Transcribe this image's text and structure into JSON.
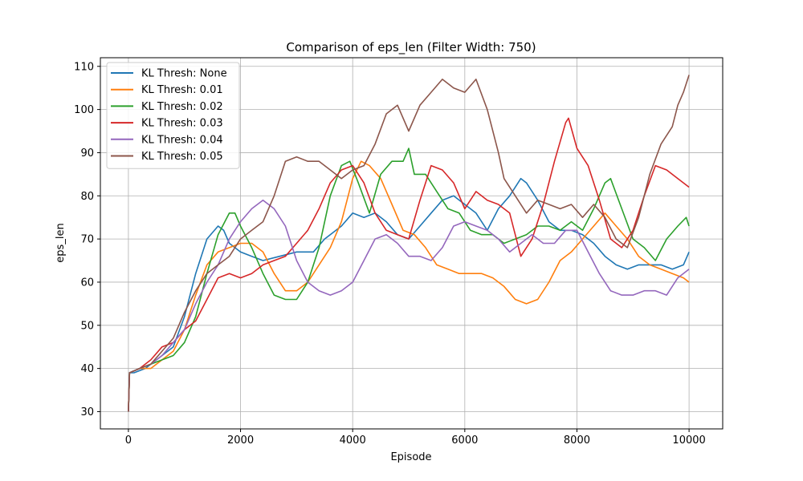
{
  "chart_data": {
    "type": "line",
    "title": "Comparison of eps_len (Filter Width: 750)",
    "xlabel": "Episode",
    "ylabel": "eps_len",
    "xlim": [
      -500,
      10600
    ],
    "ylim": [
      26,
      112
    ],
    "xticks": [
      0,
      2000,
      4000,
      6000,
      8000,
      10000
    ],
    "yticks": [
      30,
      40,
      50,
      60,
      70,
      80,
      90,
      100,
      110
    ],
    "grid": true,
    "legend_position": "upper-left",
    "series": [
      {
        "name": "KL Thresh: None",
        "color": "#1f77b4",
        "points": [
          [
            0,
            30
          ],
          [
            20,
            39
          ],
          [
            100,
            39
          ],
          [
            300,
            40
          ],
          [
            600,
            43
          ],
          [
            800,
            45
          ],
          [
            1000,
            52
          ],
          [
            1200,
            62
          ],
          [
            1400,
            70
          ],
          [
            1600,
            73
          ],
          [
            1700,
            72
          ],
          [
            1800,
            69
          ],
          [
            2000,
            67
          ],
          [
            2200,
            66
          ],
          [
            2400,
            65
          ],
          [
            2700,
            66
          ],
          [
            3000,
            67
          ],
          [
            3300,
            67
          ],
          [
            3500,
            70
          ],
          [
            3800,
            73
          ],
          [
            4000,
            76
          ],
          [
            4200,
            75
          ],
          [
            4400,
            76
          ],
          [
            4600,
            74
          ],
          [
            4800,
            71
          ],
          [
            5000,
            70
          ],
          [
            5200,
            73
          ],
          [
            5400,
            76
          ],
          [
            5600,
            79
          ],
          [
            5800,
            80
          ],
          [
            6000,
            78
          ],
          [
            6200,
            76
          ],
          [
            6400,
            72
          ],
          [
            6600,
            77
          ],
          [
            6800,
            80
          ],
          [
            7000,
            84
          ],
          [
            7100,
            83
          ],
          [
            7300,
            79
          ],
          [
            7500,
            74
          ],
          [
            7700,
            72
          ],
          [
            7900,
            72
          ],
          [
            8100,
            71
          ],
          [
            8300,
            69
          ],
          [
            8500,
            66
          ],
          [
            8700,
            64
          ],
          [
            8900,
            63
          ],
          [
            9100,
            64
          ],
          [
            9300,
            64
          ],
          [
            9500,
            64
          ],
          [
            9700,
            63
          ],
          [
            9900,
            64
          ],
          [
            10000,
            67
          ]
        ]
      },
      {
        "name": "KL Thresh: 0.01",
        "color": "#ff7f0e",
        "points": [
          [
            0,
            30
          ],
          [
            20,
            39
          ],
          [
            200,
            40
          ],
          [
            400,
            40
          ],
          [
            600,
            42
          ],
          [
            800,
            44
          ],
          [
            1000,
            49
          ],
          [
            1200,
            57
          ],
          [
            1400,
            64
          ],
          [
            1600,
            67
          ],
          [
            1800,
            68
          ],
          [
            2000,
            69
          ],
          [
            2200,
            69
          ],
          [
            2400,
            67
          ],
          [
            2600,
            62
          ],
          [
            2800,
            58
          ],
          [
            3000,
            58
          ],
          [
            3200,
            60
          ],
          [
            3400,
            64
          ],
          [
            3600,
            68
          ],
          [
            3800,
            74
          ],
          [
            4000,
            84
          ],
          [
            4150,
            88
          ],
          [
            4300,
            87
          ],
          [
            4500,
            84
          ],
          [
            4700,
            78
          ],
          [
            4900,
            72
          ],
          [
            5100,
            71
          ],
          [
            5300,
            68
          ],
          [
            5500,
            64
          ],
          [
            5700,
            63
          ],
          [
            5900,
            62
          ],
          [
            6100,
            62
          ],
          [
            6300,
            62
          ],
          [
            6500,
            61
          ],
          [
            6700,
            59
          ],
          [
            6900,
            56
          ],
          [
            7100,
            55
          ],
          [
            7300,
            56
          ],
          [
            7500,
            60
          ],
          [
            7700,
            65
          ],
          [
            7900,
            67
          ],
          [
            8100,
            70
          ],
          [
            8300,
            73
          ],
          [
            8500,
            76
          ],
          [
            8700,
            73
          ],
          [
            8900,
            70
          ],
          [
            9100,
            66
          ],
          [
            9300,
            64
          ],
          [
            9500,
            63
          ],
          [
            9700,
            62
          ],
          [
            9900,
            61
          ],
          [
            10000,
            60
          ]
        ]
      },
      {
        "name": "KL Thresh: 0.02",
        "color": "#2ca02c",
        "points": [
          [
            0,
            30
          ],
          [
            20,
            39
          ],
          [
            200,
            40
          ],
          [
            400,
            41
          ],
          [
            600,
            42
          ],
          [
            800,
            43
          ],
          [
            1000,
            46
          ],
          [
            1200,
            52
          ],
          [
            1400,
            62
          ],
          [
            1600,
            71
          ],
          [
            1800,
            76
          ],
          [
            1900,
            76
          ],
          [
            2000,
            73
          ],
          [
            2200,
            68
          ],
          [
            2400,
            62
          ],
          [
            2600,
            57
          ],
          [
            2800,
            56
          ],
          [
            3000,
            56
          ],
          [
            3200,
            60
          ],
          [
            3400,
            68
          ],
          [
            3600,
            80
          ],
          [
            3800,
            87
          ],
          [
            3950,
            88
          ],
          [
            4100,
            83
          ],
          [
            4300,
            76
          ],
          [
            4500,
            85
          ],
          [
            4700,
            88
          ],
          [
            4900,
            88
          ],
          [
            5000,
            91
          ],
          [
            5100,
            85
          ],
          [
            5300,
            85
          ],
          [
            5500,
            81
          ],
          [
            5700,
            77
          ],
          [
            5900,
            76
          ],
          [
            6100,
            72
          ],
          [
            6300,
            71
          ],
          [
            6500,
            71
          ],
          [
            6700,
            69
          ],
          [
            6900,
            70
          ],
          [
            7100,
            71
          ],
          [
            7300,
            73
          ],
          [
            7500,
            73
          ],
          [
            7700,
            72
          ],
          [
            7900,
            74
          ],
          [
            8100,
            72
          ],
          [
            8300,
            77
          ],
          [
            8500,
            83
          ],
          [
            8600,
            84
          ],
          [
            8800,
            77
          ],
          [
            9000,
            70
          ],
          [
            9200,
            68
          ],
          [
            9400,
            65
          ],
          [
            9600,
            70
          ],
          [
            9800,
            73
          ],
          [
            9950,
            75
          ],
          [
            10000,
            73
          ]
        ]
      },
      {
        "name": "KL Thresh: 0.03",
        "color": "#d62728",
        "points": [
          [
            0,
            30
          ],
          [
            20,
            39
          ],
          [
            200,
            40
          ],
          [
            400,
            42
          ],
          [
            600,
            45
          ],
          [
            800,
            46
          ],
          [
            1000,
            49
          ],
          [
            1200,
            51
          ],
          [
            1400,
            56
          ],
          [
            1600,
            61
          ],
          [
            1800,
            62
          ],
          [
            2000,
            61
          ],
          [
            2200,
            62
          ],
          [
            2400,
            64
          ],
          [
            2600,
            65
          ],
          [
            2800,
            66
          ],
          [
            3000,
            69
          ],
          [
            3200,
            72
          ],
          [
            3400,
            77
          ],
          [
            3600,
            83
          ],
          [
            3800,
            86
          ],
          [
            4000,
            87
          ],
          [
            4200,
            83
          ],
          [
            4400,
            76
          ],
          [
            4600,
            72
          ],
          [
            4800,
            71
          ],
          [
            5000,
            70
          ],
          [
            5200,
            79
          ],
          [
            5400,
            87
          ],
          [
            5600,
            86
          ],
          [
            5800,
            83
          ],
          [
            6000,
            77
          ],
          [
            6200,
            81
          ],
          [
            6400,
            79
          ],
          [
            6600,
            78
          ],
          [
            6800,
            76
          ],
          [
            7000,
            66
          ],
          [
            7200,
            70
          ],
          [
            7400,
            78
          ],
          [
            7600,
            88
          ],
          [
            7800,
            97
          ],
          [
            7850,
            98
          ],
          [
            8000,
            91
          ],
          [
            8200,
            87
          ],
          [
            8400,
            79
          ],
          [
            8600,
            70
          ],
          [
            8800,
            68
          ],
          [
            9000,
            72
          ],
          [
            9200,
            80
          ],
          [
            9400,
            87
          ],
          [
            9600,
            86
          ],
          [
            9800,
            84
          ],
          [
            10000,
            82
          ]
        ]
      },
      {
        "name": "KL Thresh: 0.04",
        "color": "#9467bd",
        "points": [
          [
            0,
            30
          ],
          [
            20,
            39
          ],
          [
            200,
            40
          ],
          [
            400,
            41
          ],
          [
            600,
            43
          ],
          [
            800,
            46
          ],
          [
            1000,
            49
          ],
          [
            1200,
            55
          ],
          [
            1400,
            60
          ],
          [
            1600,
            64
          ],
          [
            1800,
            70
          ],
          [
            2000,
            74
          ],
          [
            2200,
            77
          ],
          [
            2400,
            79
          ],
          [
            2600,
            77
          ],
          [
            2800,
            73
          ],
          [
            3000,
            65
          ],
          [
            3200,
            60
          ],
          [
            3400,
            58
          ],
          [
            3600,
            57
          ],
          [
            3800,
            58
          ],
          [
            4000,
            60
          ],
          [
            4200,
            65
          ],
          [
            4400,
            70
          ],
          [
            4600,
            71
          ],
          [
            4800,
            69
          ],
          [
            5000,
            66
          ],
          [
            5200,
            66
          ],
          [
            5400,
            65
          ],
          [
            5600,
            68
          ],
          [
            5800,
            73
          ],
          [
            6000,
            74
          ],
          [
            6200,
            73
          ],
          [
            6400,
            72
          ],
          [
            6600,
            70
          ],
          [
            6800,
            67
          ],
          [
            7000,
            69
          ],
          [
            7200,
            71
          ],
          [
            7400,
            69
          ],
          [
            7600,
            69
          ],
          [
            7800,
            72
          ],
          [
            8000,
            72
          ],
          [
            8200,
            67
          ],
          [
            8400,
            62
          ],
          [
            8600,
            58
          ],
          [
            8800,
            57
          ],
          [
            9000,
            57
          ],
          [
            9200,
            58
          ],
          [
            9400,
            58
          ],
          [
            9600,
            57
          ],
          [
            9800,
            61
          ],
          [
            10000,
            63
          ]
        ]
      },
      {
        "name": "KL Thresh: 0.05",
        "color": "#8c564b",
        "points": [
          [
            0,
            30
          ],
          [
            20,
            39
          ],
          [
            200,
            40
          ],
          [
            400,
            41
          ],
          [
            600,
            44
          ],
          [
            800,
            47
          ],
          [
            1000,
            53
          ],
          [
            1200,
            58
          ],
          [
            1400,
            62
          ],
          [
            1600,
            64
          ],
          [
            1800,
            66
          ],
          [
            2000,
            70
          ],
          [
            2200,
            72
          ],
          [
            2400,
            74
          ],
          [
            2600,
            80
          ],
          [
            2800,
            88
          ],
          [
            3000,
            89
          ],
          [
            3200,
            88
          ],
          [
            3400,
            88
          ],
          [
            3600,
            86
          ],
          [
            3800,
            84
          ],
          [
            4000,
            86
          ],
          [
            4200,
            87
          ],
          [
            4400,
            92
          ],
          [
            4600,
            99
          ],
          [
            4800,
            101
          ],
          [
            5000,
            95
          ],
          [
            5200,
            101
          ],
          [
            5400,
            104
          ],
          [
            5600,
            107
          ],
          [
            5800,
            105
          ],
          [
            6000,
            104
          ],
          [
            6200,
            107
          ],
          [
            6400,
            100
          ],
          [
            6600,
            90
          ],
          [
            6700,
            84
          ],
          [
            6900,
            80
          ],
          [
            7100,
            76
          ],
          [
            7300,
            79
          ],
          [
            7500,
            78
          ],
          [
            7700,
            77
          ],
          [
            7900,
            78
          ],
          [
            8100,
            75
          ],
          [
            8300,
            78
          ],
          [
            8500,
            75
          ],
          [
            8700,
            70
          ],
          [
            8900,
            68
          ],
          [
            9100,
            75
          ],
          [
            9300,
            85
          ],
          [
            9500,
            92
          ],
          [
            9700,
            96
          ],
          [
            9800,
            101
          ],
          [
            9900,
            104
          ],
          [
            10000,
            108
          ]
        ]
      }
    ]
  }
}
